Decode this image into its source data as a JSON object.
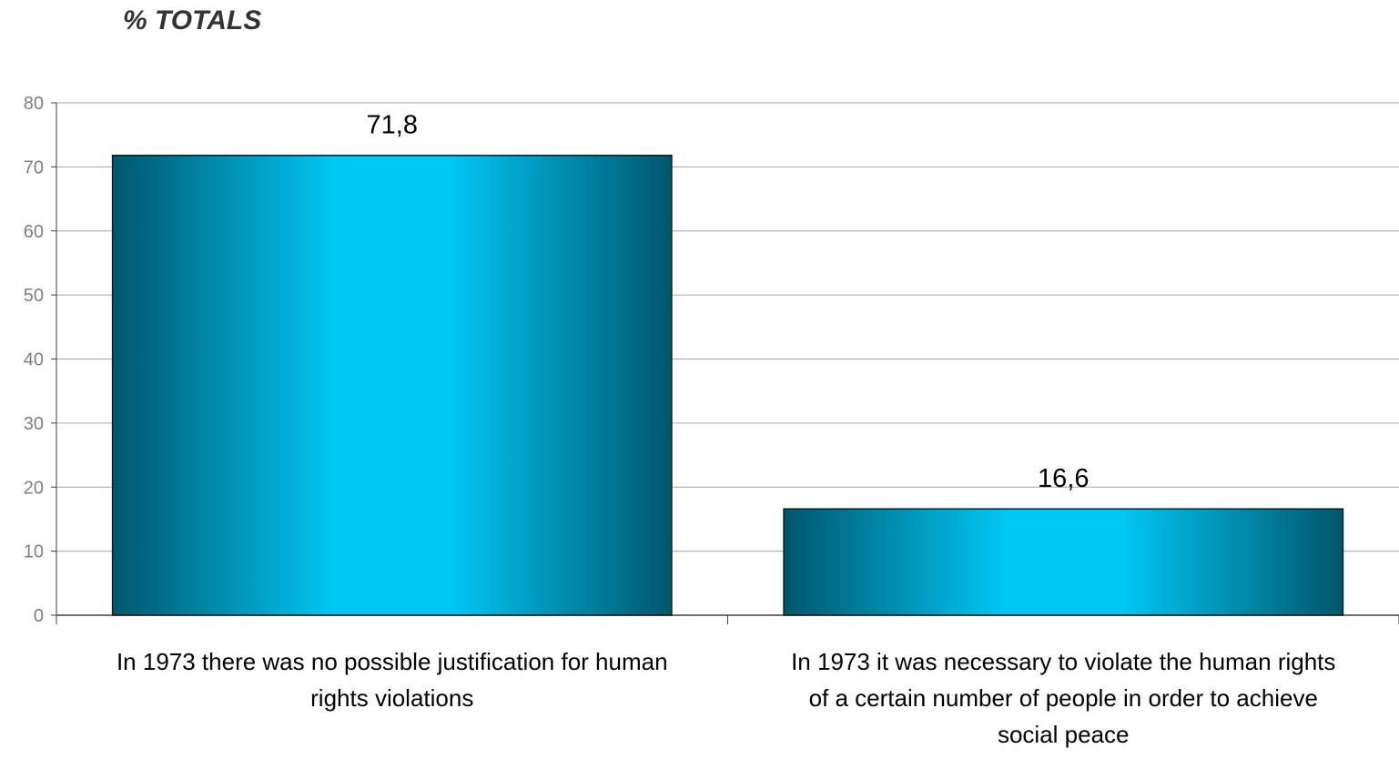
{
  "chart_data": {
    "type": "bar",
    "title": "% TOTALS",
    "categories": [
      "In 1973 there was no possible justification for human rights violations",
      "In 1973 it was necessary to violate the human rights of a certain number of people in order to achieve social peace"
    ],
    "category_lines": [
      [
        "In 1973 there was no possible justification for human",
        "rights violations"
      ],
      [
        "In 1973 it was necessary to violate the human rights",
        "of a certain number of people in order to achieve",
        "social peace"
      ]
    ],
    "values": [
      71.8,
      16.6
    ],
    "data_labels": [
      "71,8",
      "16,6"
    ],
    "xlabel": "",
    "ylabel": "",
    "ylim": [
      0,
      80
    ],
    "yticks": [
      0,
      10,
      20,
      30,
      40,
      50,
      60,
      70,
      80
    ],
    "grid": true,
    "legend": "none",
    "colors": {
      "bar_edge": "#00566c",
      "bar_mid": "#00c8f5",
      "bar_outline": "#1a1a1a",
      "grid": "#a6a6a6",
      "axis": "#404040"
    }
  }
}
